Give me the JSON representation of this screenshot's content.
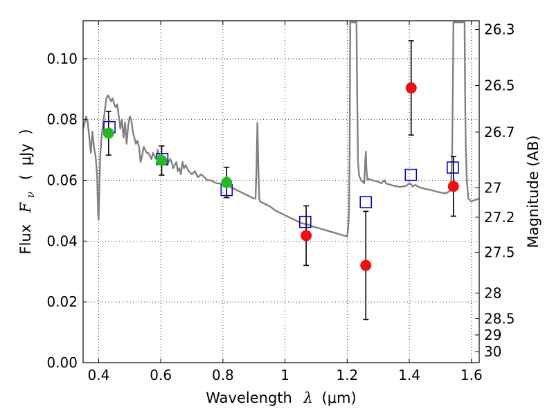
{
  "chart_data": {
    "type": "scatter",
    "xlabel": {
      "prefix": "Wavelength",
      "symbol": "λ",
      "unit": "(μm)"
    },
    "ylabel": {
      "prefix": "Flux",
      "symbol": "F",
      "subscript": "ν",
      "unit_open": "(",
      "unit": "μJy",
      "unit_close": ")"
    },
    "y2label": "Magnitude (AB)",
    "xlim": [
      0.35,
      1.625
    ],
    "ylim": [
      0.0,
      0.1125
    ],
    "grid": true,
    "x_ticks": [
      {
        "value": 0.4,
        "label": "0.4"
      },
      {
        "value": 0.6,
        "label": "0.6"
      },
      {
        "value": 0.8,
        "label": "0.8"
      },
      {
        "value": 1.0,
        "label": "1"
      },
      {
        "value": 1.2,
        "label": "1.2"
      },
      {
        "value": 1.4,
        "label": "1.4"
      },
      {
        "value": 1.6,
        "label": "1.6"
      }
    ],
    "y_ticks": [
      {
        "value": 0.0,
        "label": "0.00"
      },
      {
        "value": 0.02,
        "label": "0.02"
      },
      {
        "value": 0.04,
        "label": "0.04"
      },
      {
        "value": 0.06,
        "label": "0.06"
      },
      {
        "value": 0.08,
        "label": "0.08"
      },
      {
        "value": 0.1,
        "label": "0.10"
      }
    ],
    "y2_ticks": [
      {
        "mag": 26.3,
        "label": "26.3"
      },
      {
        "mag": 26.5,
        "label": "26.5"
      },
      {
        "mag": 26.7,
        "label": "26.7"
      },
      {
        "mag": 27.0,
        "label": "27"
      },
      {
        "mag": 27.2,
        "label": "27.2"
      },
      {
        "mag": 27.5,
        "label": "27.5"
      },
      {
        "mag": 28.0,
        "label": "28"
      },
      {
        "mag": 28.5,
        "label": "28.5"
      },
      {
        "mag": 29.0,
        "label": "29"
      },
      {
        "mag": 30.0,
        "label": "30"
      }
    ],
    "series": [
      {
        "kind": "line",
        "color": "#808080",
        "points": [
          [
            0.35,
            0.077
          ],
          [
            0.36,
            0.081
          ],
          [
            0.365,
            0.079
          ],
          [
            0.37,
            0.074
          ],
          [
            0.375,
            0.069
          ],
          [
            0.38,
            0.076
          ],
          [
            0.385,
            0.071
          ],
          [
            0.39,
            0.068
          ],
          [
            0.395,
            0.062
          ],
          [
            0.398,
            0.05
          ],
          [
            0.4,
            0.047
          ],
          [
            0.402,
            0.055
          ],
          [
            0.405,
            0.068
          ],
          [
            0.41,
            0.075
          ],
          [
            0.415,
            0.079
          ],
          [
            0.42,
            0.083
          ],
          [
            0.425,
            0.087
          ],
          [
            0.43,
            0.088
          ],
          [
            0.435,
            0.087
          ],
          [
            0.44,
            0.086
          ],
          [
            0.445,
            0.087
          ],
          [
            0.45,
            0.085
          ],
          [
            0.455,
            0.084
          ],
          [
            0.46,
            0.085
          ],
          [
            0.465,
            0.081
          ],
          [
            0.47,
            0.077
          ],
          [
            0.475,
            0.08
          ],
          [
            0.48,
            0.074
          ],
          [
            0.485,
            0.079
          ],
          [
            0.49,
            0.072
          ],
          [
            0.495,
            0.078
          ],
          [
            0.5,
            0.081
          ],
          [
            0.505,
            0.08
          ],
          [
            0.51,
            0.076
          ],
          [
            0.515,
            0.074
          ],
          [
            0.52,
            0.072
          ],
          [
            0.525,
            0.073
          ],
          [
            0.53,
            0.071
          ],
          [
            0.535,
            0.066
          ],
          [
            0.54,
            0.068
          ],
          [
            0.545,
            0.071
          ],
          [
            0.55,
            0.07
          ],
          [
            0.555,
            0.069
          ],
          [
            0.56,
            0.069
          ],
          [
            0.565,
            0.068
          ],
          [
            0.57,
            0.067
          ],
          [
            0.575,
            0.069
          ],
          [
            0.58,
            0.068
          ],
          [
            0.585,
            0.067
          ],
          [
            0.59,
            0.07
          ],
          [
            0.595,
            0.068
          ],
          [
            0.6,
            0.067
          ],
          [
            0.605,
            0.066
          ],
          [
            0.61,
            0.067
          ],
          [
            0.615,
            0.066
          ],
          [
            0.62,
            0.065
          ],
          [
            0.625,
            0.066
          ],
          [
            0.63,
            0.067
          ],
          [
            0.635,
            0.066
          ],
          [
            0.64,
            0.064
          ],
          [
            0.645,
            0.065
          ],
          [
            0.65,
            0.066
          ],
          [
            0.655,
            0.063
          ],
          [
            0.66,
            0.064
          ],
          [
            0.665,
            0.062
          ],
          [
            0.67,
            0.066
          ],
          [
            0.675,
            0.064
          ],
          [
            0.68,
            0.065
          ],
          [
            0.69,
            0.063
          ],
          [
            0.7,
            0.062
          ],
          [
            0.71,
            0.063
          ],
          [
            0.72,
            0.061
          ],
          [
            0.73,
            0.062
          ],
          [
            0.74,
            0.061
          ],
          [
            0.75,
            0.06
          ],
          [
            0.76,
            0.06
          ],
          [
            0.77,
            0.0595
          ],
          [
            0.78,
            0.059
          ],
          [
            0.79,
            0.059
          ],
          [
            0.8,
            0.0585
          ],
          [
            0.81,
            0.058
          ],
          [
            0.82,
            0.058
          ],
          [
            0.83,
            0.0575
          ],
          [
            0.84,
            0.057
          ],
          [
            0.85,
            0.0565
          ],
          [
            0.86,
            0.056
          ],
          [
            0.87,
            0.0555
          ],
          [
            0.88,
            0.055
          ],
          [
            0.89,
            0.0545
          ],
          [
            0.9,
            0.054
          ],
          [
            0.905,
            0.054
          ],
          [
            0.908,
            0.063
          ],
          [
            0.911,
            0.079
          ],
          [
            0.914,
            0.065
          ],
          [
            0.917,
            0.054
          ],
          [
            0.92,
            0.053
          ],
          [
            0.93,
            0.0525
          ],
          [
            0.95,
            0.0515
          ],
          [
            0.97,
            0.05
          ],
          [
            0.99,
            0.049
          ],
          [
            1.01,
            0.048
          ],
          [
            1.03,
            0.047
          ],
          [
            1.05,
            0.046
          ],
          [
            1.07,
            0.0455
          ],
          [
            1.09,
            0.0448
          ],
          [
            1.11,
            0.0442
          ],
          [
            1.13,
            0.0436
          ],
          [
            1.15,
            0.043
          ],
          [
            1.17,
            0.0424
          ],
          [
            1.19,
            0.0418
          ],
          [
            1.2,
            0.0415
          ],
          [
            1.203,
            0.044
          ],
          [
            1.206,
            0.05
          ],
          [
            1.208,
            0.07
          ],
          [
            1.21,
            0.112
          ],
          [
            1.23,
            0.112
          ],
          [
            1.232,
            0.09
          ],
          [
            1.235,
            0.066
          ],
          [
            1.238,
            0.062
          ],
          [
            1.24,
            0.061
          ],
          [
            1.245,
            0.06
          ],
          [
            1.25,
            0.0595
          ],
          [
            1.255,
            0.059
          ],
          [
            1.258,
            0.066
          ],
          [
            1.26,
            0.0695
          ],
          [
            1.262,
            0.064
          ],
          [
            1.265,
            0.0602
          ],
          [
            1.27,
            0.0605
          ],
          [
            1.28,
            0.06
          ],
          [
            1.29,
            0.0598
          ],
          [
            1.3,
            0.0595
          ],
          [
            1.31,
            0.059
          ],
          [
            1.32,
            0.06
          ],
          [
            1.325,
            0.059
          ],
          [
            1.33,
            0.0588
          ],
          [
            1.34,
            0.0585
          ],
          [
            1.35,
            0.0582
          ],
          [
            1.36,
            0.058
          ],
          [
            1.37,
            0.0578
          ],
          [
            1.38,
            0.058
          ],
          [
            1.39,
            0.0582
          ],
          [
            1.4,
            0.059
          ],
          [
            1.405,
            0.0588
          ],
          [
            1.41,
            0.058
          ],
          [
            1.42,
            0.0585
          ],
          [
            1.43,
            0.0578
          ],
          [
            1.44,
            0.0575
          ],
          [
            1.45,
            0.0572
          ],
          [
            1.46,
            0.057
          ],
          [
            1.47,
            0.0568
          ],
          [
            1.48,
            0.0565
          ],
          [
            1.49,
            0.0562
          ],
          [
            1.5,
            0.056
          ],
          [
            1.51,
            0.0558
          ],
          [
            1.52,
            0.0558
          ],
          [
            1.53,
            0.0565
          ],
          [
            1.535,
            0.06
          ],
          [
            1.538,
            0.07
          ],
          [
            1.54,
            0.09
          ],
          [
            1.542,
            0.112
          ],
          [
            1.578,
            0.112
          ],
          [
            1.58,
            0.085
          ],
          [
            1.582,
            0.07
          ],
          [
            1.585,
            0.06
          ],
          [
            1.59,
            0.054
          ],
          [
            1.6,
            0.053
          ],
          [
            1.61,
            0.0535
          ],
          [
            1.62,
            0.0538
          ],
          [
            1.625,
            0.054
          ]
        ]
      },
      {
        "kind": "open-square",
        "color": "#0000cc",
        "points": [
          [
            0.435,
            0.0775
          ],
          [
            0.605,
            0.067
          ],
          [
            0.812,
            0.0568
          ],
          [
            1.065,
            0.0463
          ],
          [
            1.26,
            0.0528
          ],
          [
            1.405,
            0.0618
          ],
          [
            1.54,
            0.0642
          ]
        ]
      },
      {
        "kind": "filled-circle",
        "color": "#22bb22",
        "points": [
          {
            "x": 0.432,
            "y": 0.0755,
            "err": 0.0072
          },
          {
            "x": 0.603,
            "y": 0.0665,
            "err": 0.0048
          },
          {
            "x": 0.812,
            "y": 0.0593,
            "err": 0.005
          }
        ]
      },
      {
        "kind": "filled-circle",
        "color": "#ee1111",
        "points": [
          {
            "x": 1.068,
            "y": 0.0418,
            "err": 0.0098
          },
          {
            "x": 1.26,
            "y": 0.032,
            "err": 0.0178
          },
          {
            "x": 1.406,
            "y": 0.0904,
            "err": 0.0155
          },
          {
            "x": 1.542,
            "y": 0.058,
            "err": 0.0098
          }
        ]
      }
    ]
  }
}
